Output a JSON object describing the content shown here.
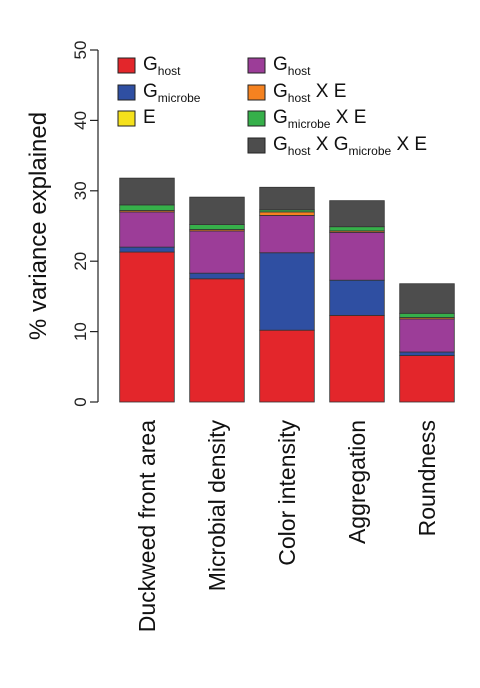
{
  "chart_data": {
    "type": "bar",
    "stacked": true,
    "title": "",
    "xlabel": "",
    "ylabel": "% variance explained",
    "ylim": [
      0,
      50
    ],
    "yticks": [
      0,
      10,
      20,
      30,
      40,
      50
    ],
    "grid": false,
    "legend_position": "top",
    "categories": [
      "Duckweed front area",
      "Microbial density",
      "Color intensity",
      "Aggregation",
      "Roundness"
    ],
    "series": [
      {
        "key": "G_host",
        "main": "G",
        "sub": "host",
        "suffix": "",
        "color": "#e3262b",
        "values": [
          21.3,
          17.5,
          10.2,
          12.3,
          6.6
        ]
      },
      {
        "key": "G_microbe",
        "main": "G",
        "sub": "microbe",
        "suffix": "",
        "color": "#2f4fa2",
        "values": [
          0.7,
          0.8,
          11.0,
          5.0,
          0.5
        ]
      },
      {
        "key": "E",
        "main": "E",
        "sub": "",
        "suffix": "",
        "color": "#f5e11c",
        "values": [
          0.0,
          0.0,
          0.0,
          0.0,
          0.0
        ]
      },
      {
        "key": "G_host_x_G_microbe",
        "main": "G",
        "sub": "host",
        "suffix": "",
        "color": "#9c3d98",
        "values": [
          5.0,
          6.0,
          5.3,
          6.8,
          4.7
        ]
      },
      {
        "key": "G_host_x_E",
        "main": "G",
        "sub": "host",
        "suffix": " X E",
        "color": "#f58220",
        "values": [
          0.2,
          0.2,
          0.5,
          0.2,
          0.2
        ]
      },
      {
        "key": "G_microbe_x_E",
        "main": "G",
        "sub": "microbe",
        "suffix": " X E",
        "color": "#36b04a",
        "values": [
          0.8,
          0.7,
          0.3,
          0.6,
          0.6
        ]
      },
      {
        "key": "G_host_x_G_microbe_x_E",
        "main": "G",
        "sub": "host",
        "mid": " X G",
        "sub2": "microbe",
        "suffix": " X E",
        "color": "#4d4d4d",
        "values": [
          3.8,
          3.9,
          3.2,
          3.7,
          4.2
        ]
      }
    ]
  }
}
